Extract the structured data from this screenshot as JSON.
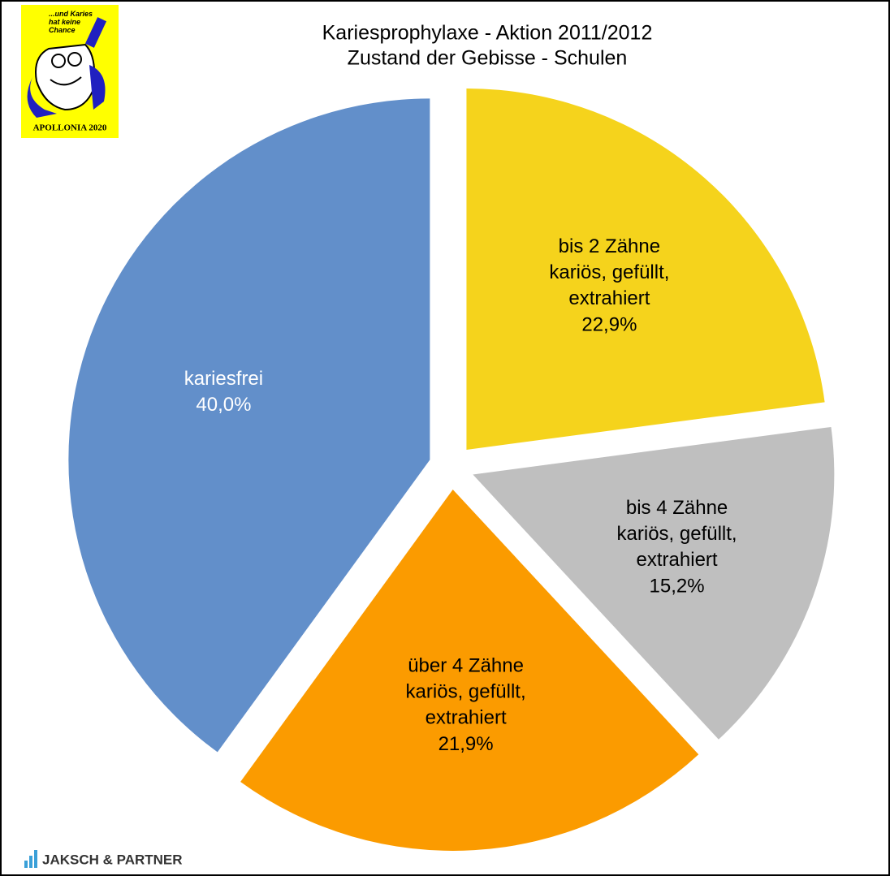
{
  "chart_data": {
    "type": "pie",
    "title": "Kariesprophylaxe - Aktion 2011/2012",
    "subtitle": "Zustand der Gebisse - Schulen",
    "categories": [
      "bis 2 Zähne\nkariös, gefüllt,\nextrahiert",
      "bis 4 Zähne\nkariös, gefüllt,\nextrahiert",
      "über 4 Zähne\nkariös, gefüllt,\nextrahiert",
      "kariesfrei"
    ],
    "values": [
      22.9,
      15.2,
      21.9,
      40.0
    ],
    "value_labels": [
      "22,9%",
      "15,2%",
      "21,9%",
      "40,0%"
    ],
    "colors": [
      "#f5d31c",
      "#bfbfbf",
      "#fb9b00",
      "#628fca"
    ],
    "label_colors": [
      "#000000",
      "#000000",
      "#000000",
      "#ffffff"
    ]
  },
  "logos": {
    "slogan": "...und Karies\nhat keine\nChance",
    "badge": "APOLLONIA 2020",
    "company": "JAKSCH & PARTNER"
  }
}
